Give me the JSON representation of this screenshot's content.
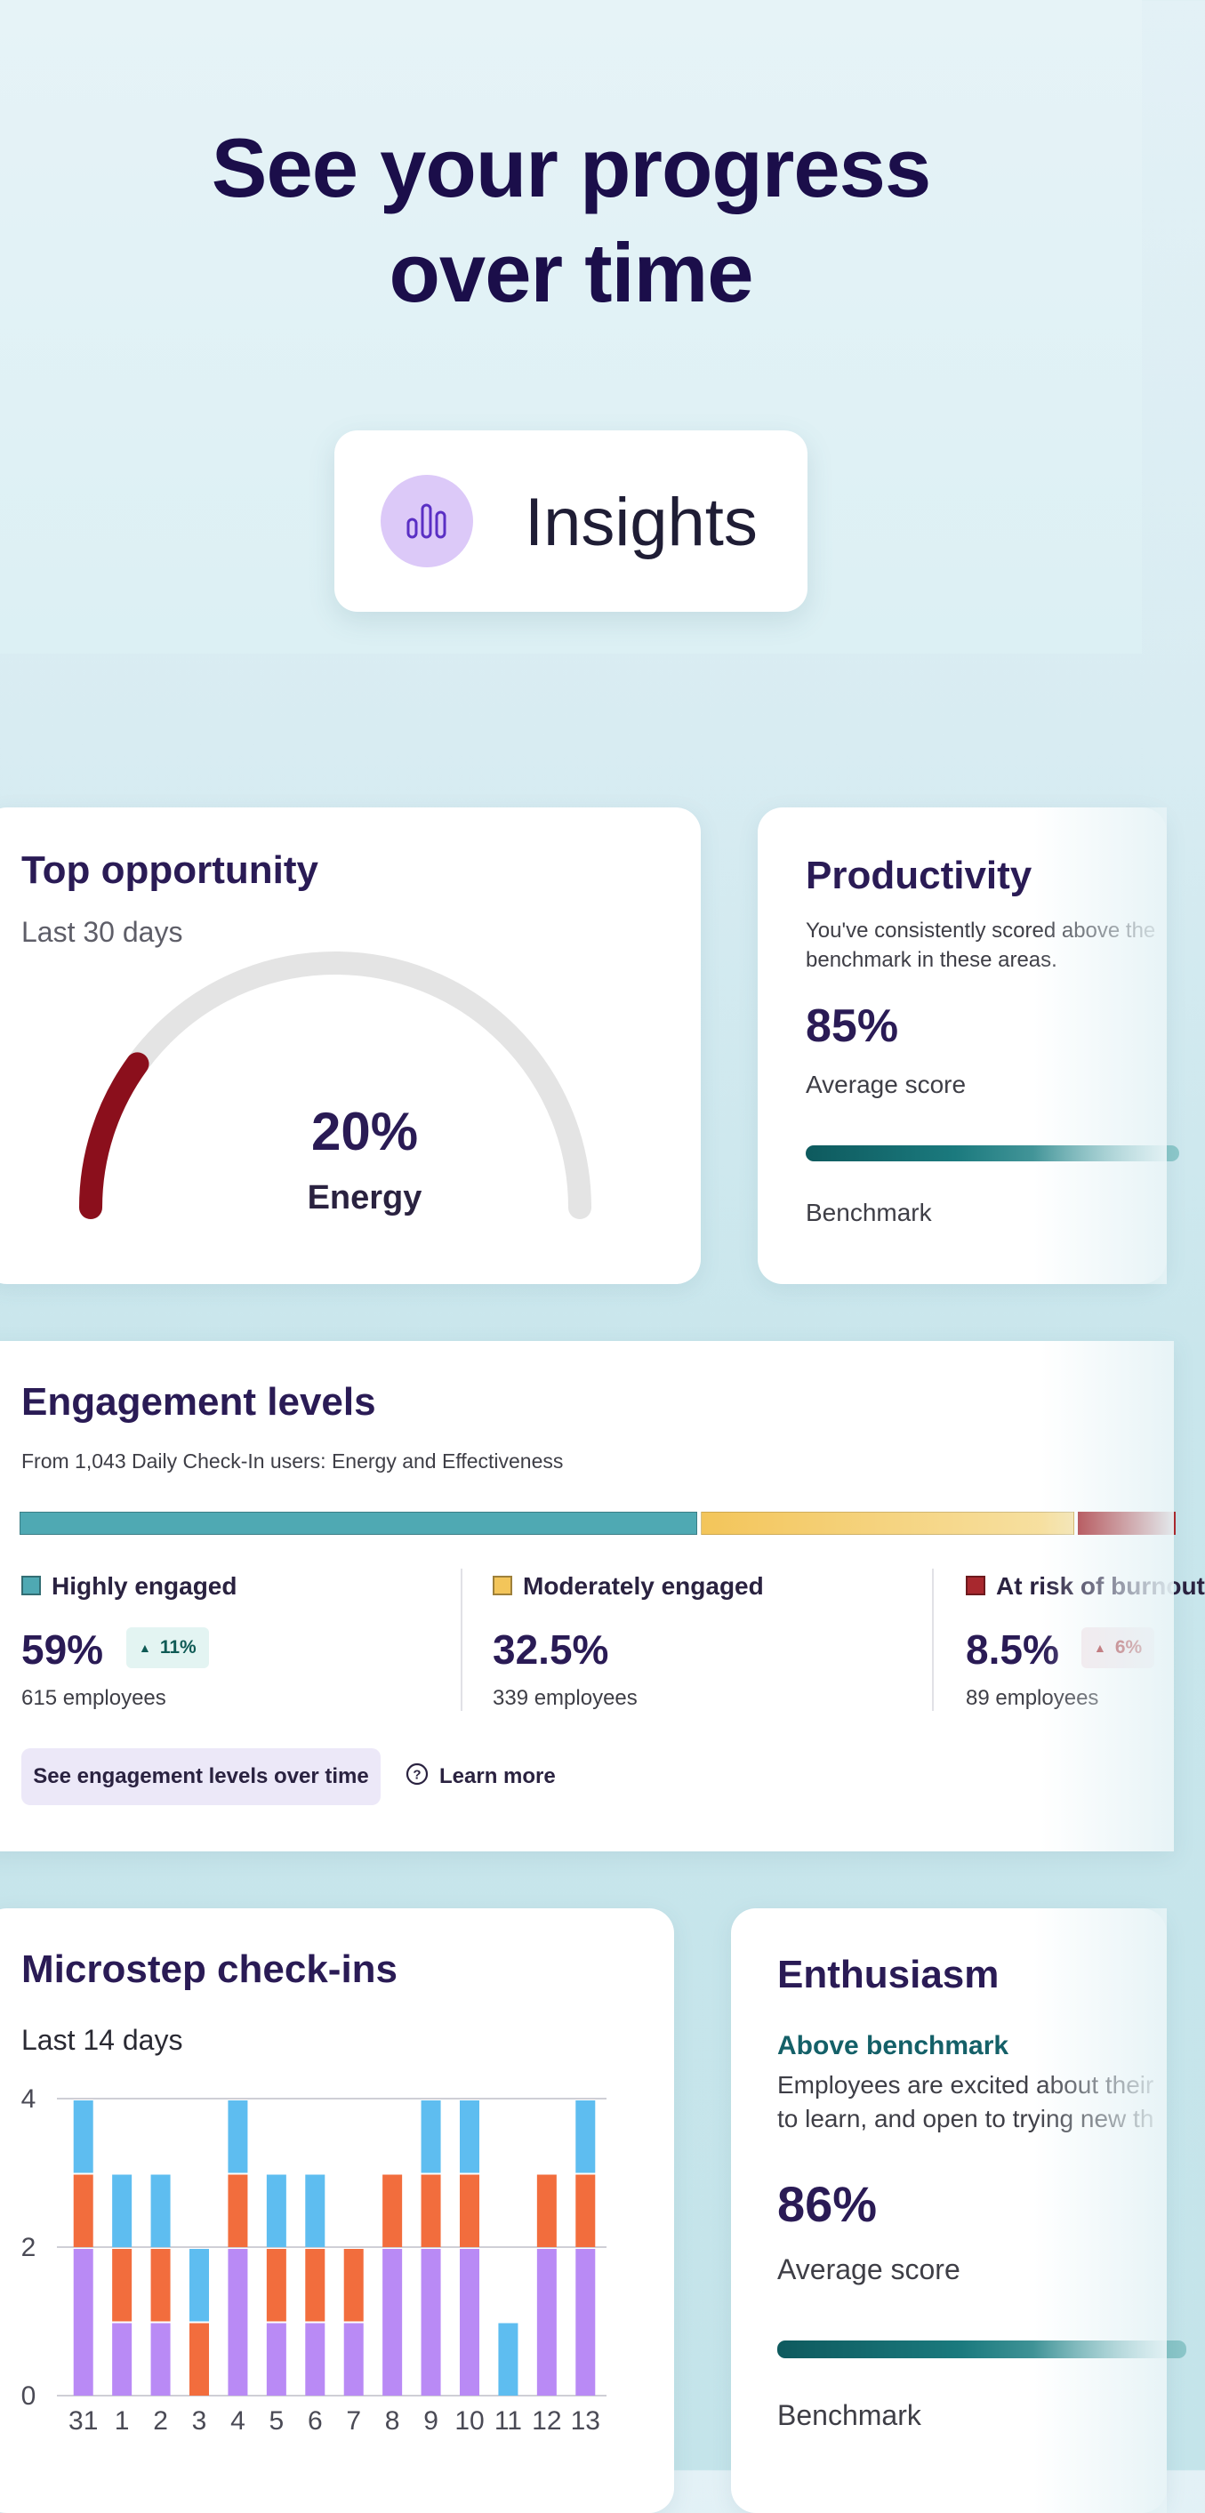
{
  "hero": {
    "headline_line1": "See your progress",
    "headline_line2": "over time",
    "pill_label": "Insights",
    "pill_icon": "bar-chart-icon"
  },
  "top_opportunity": {
    "title": "Top opportunity",
    "period": "Last 30 days",
    "value": "20%",
    "value_fraction": 0.2,
    "metric": "Energy",
    "fill_color": "#8b0f1c",
    "track_color": "#e4e4e4"
  },
  "productivity": {
    "title": "Productivity",
    "description_line1": "You've consistently scored above the",
    "description_line2": "benchmark in these areas.",
    "score": "85%",
    "score_label": "Average score",
    "benchmark_label": "Benchmark"
  },
  "engagement": {
    "title": "Engagement levels",
    "subtitle": "From 1,043 Daily Check-In users: Energy and Effectiveness",
    "segments": [
      {
        "label": "Highly engaged",
        "pct": "59%",
        "value": 59,
        "employees": "615 employees",
        "color": "#4fa9b3",
        "badge": "11%"
      },
      {
        "label": "Moderately engaged",
        "pct": "32.5%",
        "value": 32.5,
        "employees": "339 employees",
        "color": "#f3c55a",
        "badge": ""
      },
      {
        "label": "At risk of burnout",
        "pct": "8.5%",
        "value": 8.5,
        "employees": "89 employees",
        "color": "#a8282e",
        "badge": "6%"
      }
    ],
    "button_label": "See engagement levels over time",
    "learn_more_label": "Learn more",
    "learn_more_icon": "question-circle-icon"
  },
  "microstep": {
    "title": "Microstep check-ins",
    "period": "Last 14 days",
    "chart_data": {
      "type": "bar",
      "stacked": true,
      "categories": [
        "31",
        "1",
        "2",
        "3",
        "4",
        "5",
        "6",
        "7",
        "8",
        "9",
        "10",
        "11",
        "12",
        "13"
      ],
      "series": [
        {
          "color": "#b98af5",
          "values": [
            2,
            1,
            1,
            0,
            2,
            1,
            1,
            1,
            2,
            2,
            2,
            0,
            2,
            2
          ]
        },
        {
          "color": "#f26d3d",
          "values": [
            1,
            1,
            1,
            1,
            1,
            1,
            1,
            1,
            1,
            1,
            1,
            0,
            1,
            1
          ]
        },
        {
          "color": "#5ebdf0",
          "values": [
            1,
            1,
            1,
            1,
            1,
            1,
            1,
            0,
            0,
            1,
            1,
            1,
            0,
            1
          ]
        }
      ],
      "ylim": [
        0,
        4
      ],
      "yticks": [
        "0",
        "2",
        "4"
      ],
      "grid": true
    }
  },
  "enthusiasm": {
    "title": "Enthusiasm",
    "status": "Above benchmark",
    "description_line1": "Employees are excited about their",
    "description_line2": "to learn, and open to trying new th",
    "score": "86%",
    "score_label": "Average score",
    "benchmark_label": "Benchmark"
  }
}
